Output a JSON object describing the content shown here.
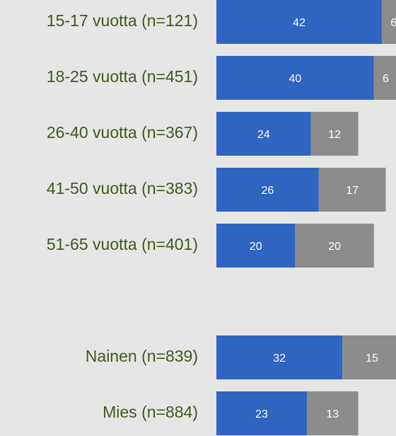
{
  "chart_data": {
    "type": "stacked-bar-horizontal",
    "categories": [
      "15-17 vuotta (n=121)",
      "18-25 vuotta (n=451)",
      "26-40 vuotta (n=367)",
      "41-50 vuotta (n=383)",
      "51-65 vuotta (n=401)",
      null,
      "Nainen (n=839)",
      "Mies (n=884)"
    ],
    "series": [
      {
        "color": "#2f64c0",
        "values": [
          42,
          40,
          24,
          26,
          20,
          null,
          32,
          23
        ]
      },
      {
        "color": "#8c8c8c",
        "values": [
          6,
          6,
          12,
          17,
          20,
          null,
          15,
          13
        ]
      }
    ]
  }
}
